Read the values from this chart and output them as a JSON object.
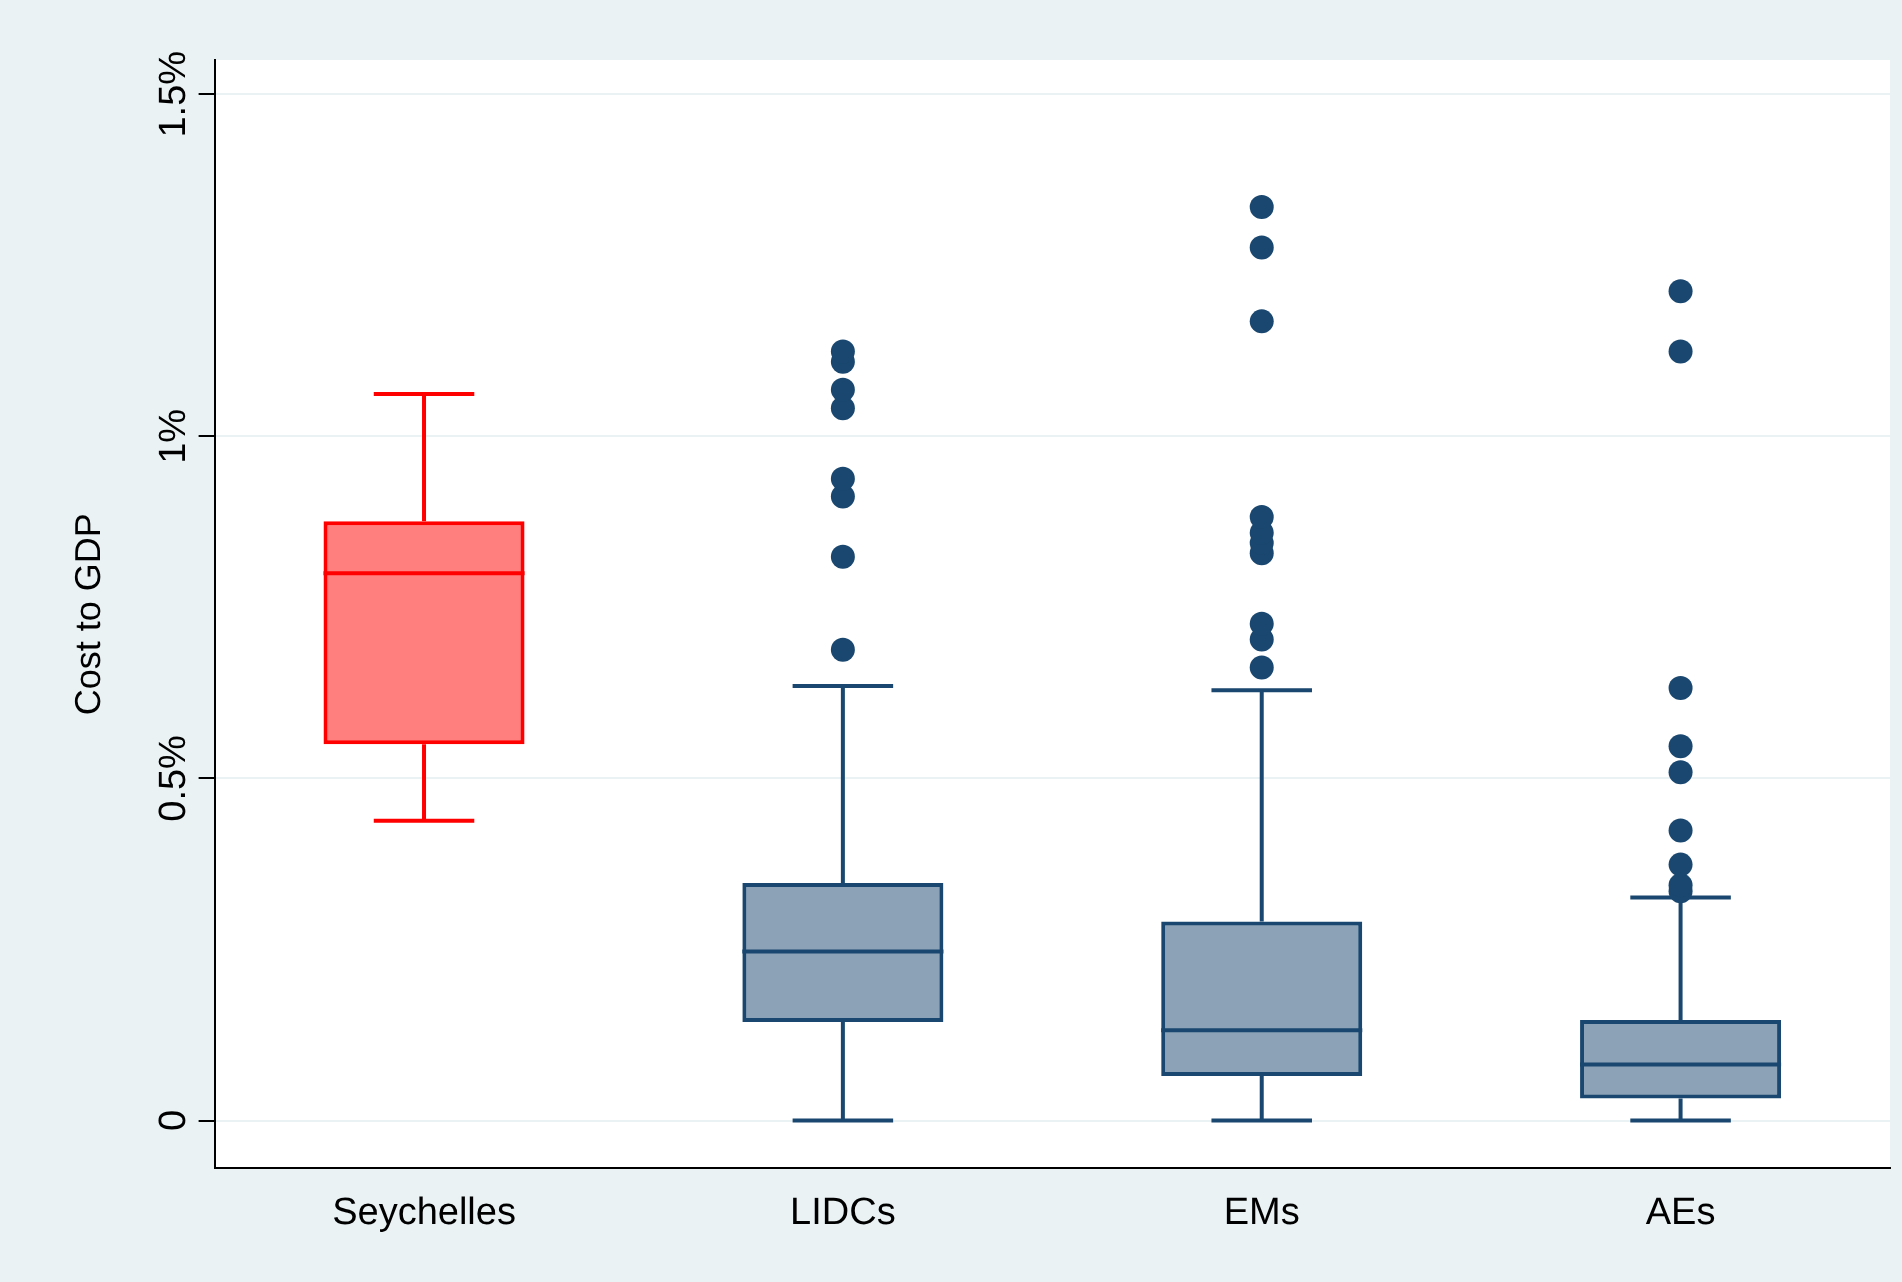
{
  "chart_data": {
    "type": "box",
    "ylabel": "Cost to GDP",
    "categories": [
      "Seychelles",
      "LIDCs",
      "EMs",
      "AEs"
    ],
    "colors": [
      "#ff0000",
      "#1a476f",
      "#1a476f",
      "#1a476f"
    ],
    "boxes": [
      {
        "low": 0.438,
        "q1": 0.55,
        "median": 0.8,
        "q3": 0.876,
        "high": 1.062
      },
      {
        "low": 0,
        "q1": 0.144,
        "median": 0.247,
        "q3": 0.347,
        "high": 0.635,
        "outliers": [
          0.688,
          0.824,
          0.912,
          0.938,
          1.041,
          1.068,
          1.109,
          1.124
        ]
      },
      {
        "low": 0,
        "q1": 0.065,
        "median": 0.132,
        "q3": 0.291,
        "high": 0.629,
        "outliers": [
          0.662,
          0.703,
          0.726,
          0.829,
          0.844,
          0.859,
          0.882,
          1.168,
          1.276,
          1.335
        ]
      },
      {
        "low": 0,
        "q1": 0.032,
        "median": 0.082,
        "q3": 0.147,
        "high": 0.326,
        "outliers": [
          0.335,
          0.344,
          0.374,
          0.424,
          0.509,
          0.547,
          0.632,
          1.124,
          1.212
        ]
      }
    ],
    "ylim": [
      -0.07,
      1.55
    ],
    "yticks": [
      {
        "value": 0,
        "label": "0"
      },
      {
        "value": 0.5,
        "label": "0.5%"
      },
      {
        "value": 1,
        "label": "1%"
      },
      {
        "value": 1.5,
        "label": "1.5%"
      }
    ],
    "grid": "y",
    "legend": false
  }
}
